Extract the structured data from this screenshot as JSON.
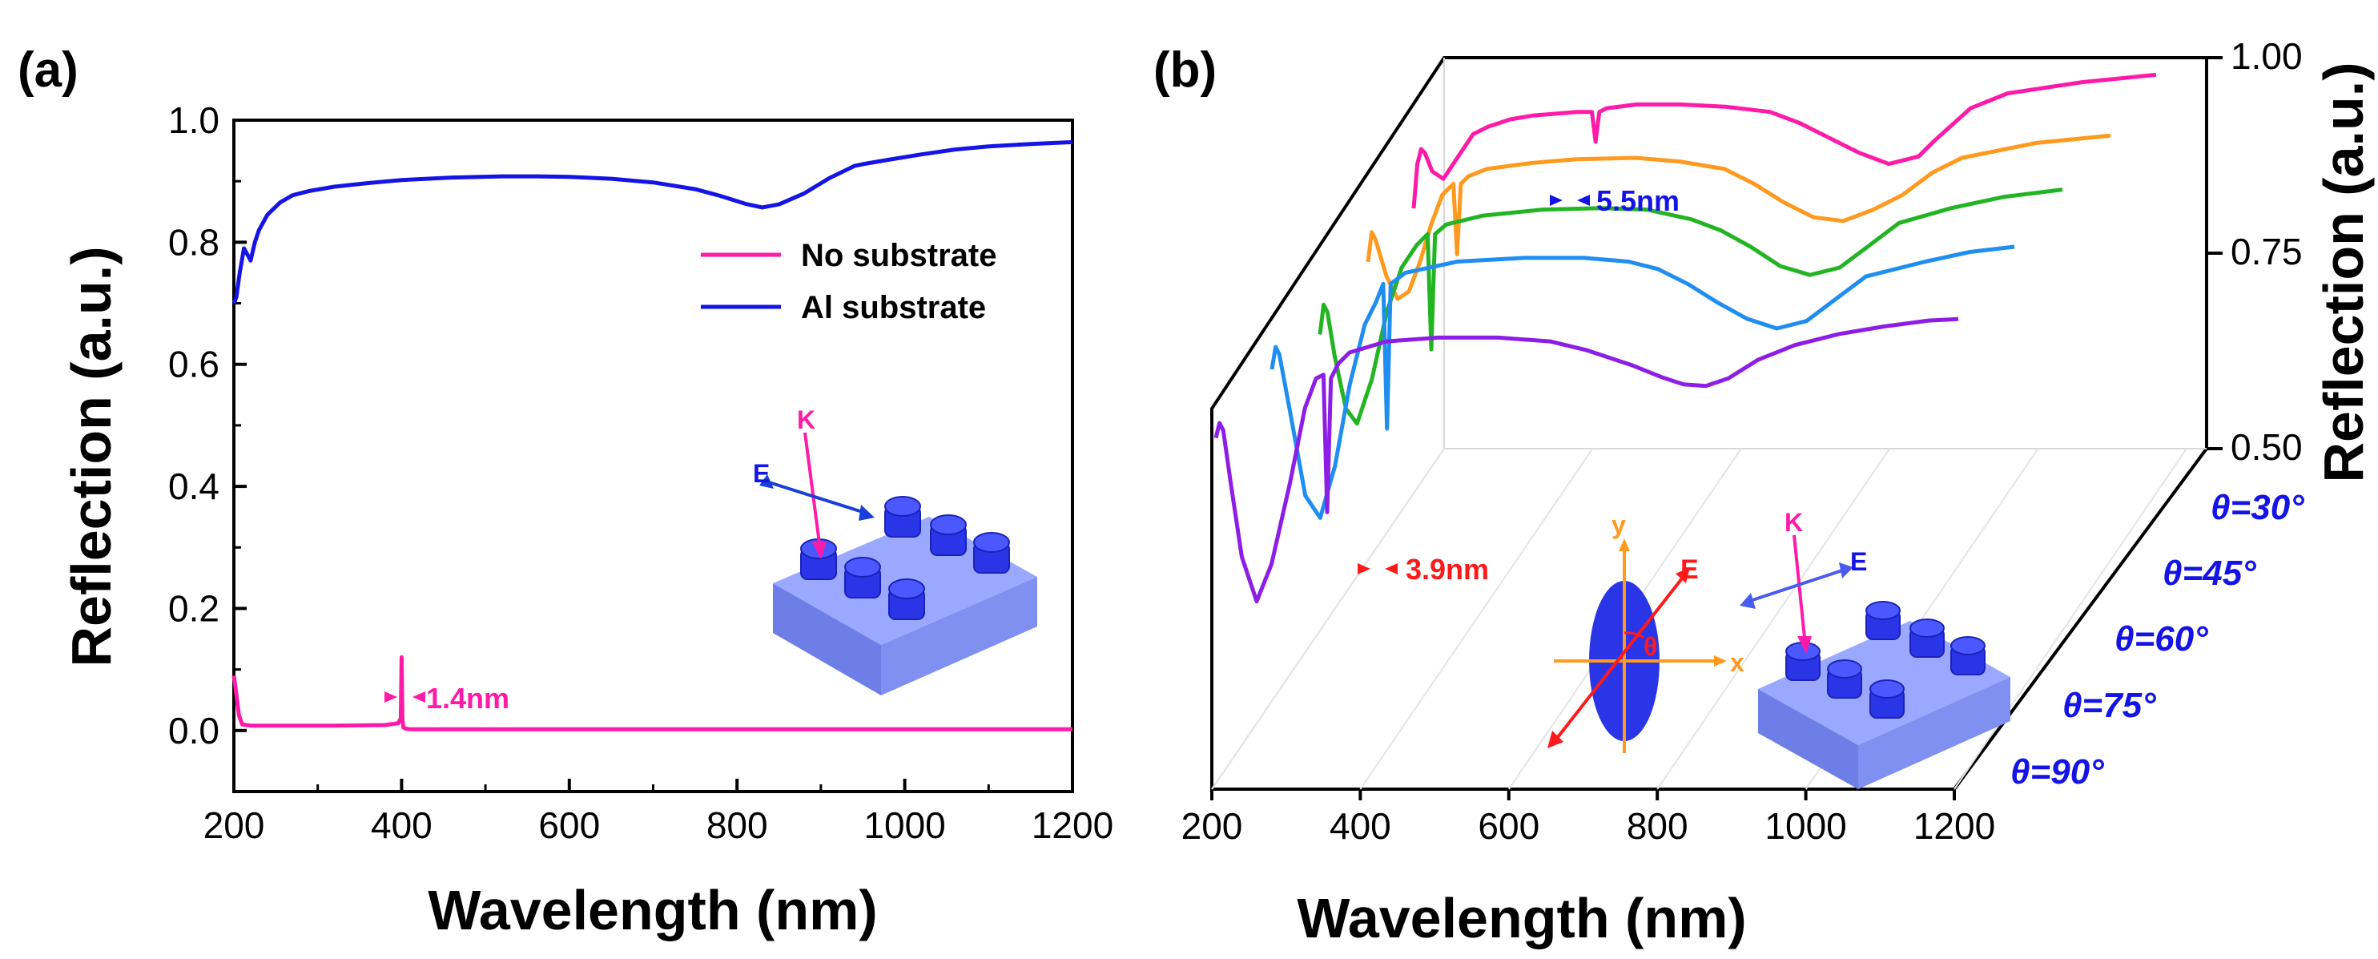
{
  "colors": {
    "magenta": "#ff1aa8",
    "blue": "#1414e6",
    "orange": "#ff9a1f",
    "green": "#22b422",
    "lightblue": "#1f8ef0",
    "purple": "#8c1ee6",
    "red": "#ff1a1a",
    "axis": "#000000"
  },
  "panel_a": {
    "label": "(a)",
    "legend": [
      "No substrate",
      "Al  substrate"
    ],
    "annotation": "1.4nm",
    "inset": {
      "k_label": "K",
      "e_label": "E"
    }
  },
  "panel_b": {
    "label": "(b)",
    "annotation_top": "5.5nm",
    "annotation_bottom": "3.9nm",
    "angles": [
      "θ=30°",
      "θ=45°",
      "θ=60°",
      "θ=75°",
      "θ=90°"
    ],
    "inset_axes": {
      "x": "x",
      "y": "y",
      "e": "E",
      "theta": "θ"
    },
    "inset_k": "K",
    "inset_e": "E"
  },
  "chart_data": [
    {
      "type": "line",
      "title": "",
      "xlabel": "Wavelength (nm)",
      "ylabel": "Reflection (a.u.)",
      "xlim": [
        200,
        1200
      ],
      "ylim": [
        -0.1,
        1.0
      ],
      "xticks": [
        "200",
        "400",
        "600",
        "800",
        "1000",
        "1200"
      ],
      "yticks": [
        "0.0",
        "0.2",
        "0.4",
        "0.6",
        "0.8",
        "1.0"
      ],
      "series": [
        {
          "name": "No substrate",
          "x": [
            200,
            203,
            206,
            210,
            220,
            260,
            320,
            380,
            396,
            399,
            400,
            401,
            402,
            405,
            410,
            500,
            600,
            700,
            800,
            900,
            1000,
            1100,
            1200
          ],
          "y": [
            0.09,
            0.06,
            0.025,
            0.01,
            0.008,
            0.008,
            0.008,
            0.009,
            0.012,
            0.02,
            0.12,
            0.02,
            0.005,
            0.003,
            0.002,
            0.002,
            0.002,
            0.002,
            0.002,
            0.002,
            0.002,
            0.002,
            0.002
          ]
        },
        {
          "name": "Al  substrate",
          "x": [
            200,
            203,
            207,
            212,
            216,
            220,
            225,
            230,
            240,
            255,
            270,
            290,
            320,
            360,
            400,
            460,
            520,
            560,
            600,
            650,
            700,
            750,
            780,
            810,
            830,
            850,
            880,
            910,
            940,
            950,
            980,
            1020,
            1060,
            1100,
            1150,
            1200
          ],
          "y": [
            0.7,
            0.71,
            0.75,
            0.79,
            0.78,
            0.77,
            0.8,
            0.82,
            0.845,
            0.865,
            0.877,
            0.884,
            0.891,
            0.897,
            0.902,
            0.906,
            0.908,
            0.908,
            0.907,
            0.904,
            0.898,
            0.887,
            0.876,
            0.863,
            0.857,
            0.862,
            0.88,
            0.905,
            0.925,
            0.928,
            0.935,
            0.944,
            0.952,
            0.957,
            0.961,
            0.964
          ]
        }
      ]
    },
    {
      "type": "line",
      "title": "",
      "xlabel": "Wavelength (nm)",
      "ylabel": "Reflection (a.u.)",
      "xlim": [
        200,
        1200
      ],
      "zlim": [
        0.5,
        1.0
      ],
      "xticks": [
        "200",
        "400",
        "600",
        "800",
        "1000",
        "1200"
      ],
      "zticks": [
        "0.50",
        "0.75",
        "1.00"
      ],
      "categories": [
        "θ=30°",
        "θ=45°",
        "θ=60°",
        "θ=75°",
        "θ=90°"
      ],
      "series": [
        {
          "name": "θ=30°",
          "x": [
            200,
            205,
            210,
            215,
            225,
            240,
            260,
            280,
            300,
            330,
            360,
            420,
            440,
            445,
            450,
            460,
            500,
            560,
            620,
            680,
            720,
            760,
            800,
            840,
            880,
            900,
            950,
            1000,
            1100,
            1200
          ],
          "y": [
            0.8,
            0.86,
            0.88,
            0.875,
            0.85,
            0.84,
            0.87,
            0.9,
            0.91,
            0.92,
            0.925,
            0.93,
            0.93,
            0.89,
            0.93,
            0.935,
            0.94,
            0.94,
            0.937,
            0.93,
            0.915,
            0.895,
            0.875,
            0.86,
            0.87,
            0.89,
            0.935,
            0.955,
            0.97,
            0.98
          ]
        },
        {
          "name": "θ=45°",
          "x": [
            200,
            205,
            210,
            225,
            240,
            255,
            270,
            285,
            300,
            315,
            320,
            325,
            335,
            360,
            420,
            480,
            560,
            620,
            680,
            720,
            760,
            800,
            840,
            880,
            920,
            960,
            1000,
            1100,
            1200
          ],
          "y": [
            0.78,
            0.82,
            0.81,
            0.76,
            0.73,
            0.74,
            0.78,
            0.83,
            0.87,
            0.885,
            0.79,
            0.885,
            0.895,
            0.905,
            0.913,
            0.918,
            0.92,
            0.915,
            0.905,
            0.885,
            0.86,
            0.84,
            0.835,
            0.85,
            0.87,
            0.9,
            0.92,
            0.94,
            0.95
          ]
        },
        {
          "name": "θ=60°",
          "x": [
            200,
            205,
            210,
            220,
            235,
            250,
            270,
            290,
            310,
            330,
            345,
            350,
            355,
            370,
            420,
            500,
            580,
            640,
            700,
            740,
            780,
            820,
            860,
            900,
            940,
            980,
            1050,
            1120,
            1200
          ],
          "y": [
            0.72,
            0.76,
            0.75,
            0.69,
            0.62,
            0.6,
            0.66,
            0.75,
            0.81,
            0.84,
            0.855,
            0.7,
            0.855,
            0.868,
            0.88,
            0.888,
            0.89,
            0.888,
            0.875,
            0.86,
            0.838,
            0.812,
            0.8,
            0.81,
            0.84,
            0.87,
            0.89,
            0.905,
            0.915
          ]
        },
        {
          "name": "θ=75°",
          "x": [
            200,
            205,
            210,
            225,
            245,
            265,
            285,
            305,
            325,
            340,
            350,
            355,
            360,
            380,
            450,
            540,
            620,
            680,
            720,
            760,
            800,
            840,
            880,
            920,
            960,
            1000,
            1080,
            1140,
            1200
          ],
          "y": [
            0.7,
            0.73,
            0.72,
            0.64,
            0.53,
            0.5,
            0.57,
            0.68,
            0.76,
            0.79,
            0.815,
            0.62,
            0.815,
            0.83,
            0.845,
            0.85,
            0.85,
            0.845,
            0.835,
            0.815,
            0.79,
            0.768,
            0.755,
            0.765,
            0.795,
            0.825,
            0.845,
            0.858,
            0.865
          ]
        },
        {
          "name": "θ=90°",
          "x": [
            200,
            205,
            210,
            220,
            235,
            255,
            275,
            300,
            320,
            335,
            345,
            350,
            355,
            365,
            380,
            430,
            500,
            580,
            650,
            700,
            760,
            800,
            830,
            860,
            890,
            930,
            980,
            1040,
            1100,
            1160,
            1200
          ],
          "y": [
            0.64,
            0.66,
            0.65,
            0.58,
            0.48,
            0.42,
            0.47,
            0.58,
            0.68,
            0.72,
            0.725,
            0.54,
            0.72,
            0.74,
            0.755,
            0.77,
            0.775,
            0.775,
            0.77,
            0.758,
            0.738,
            0.722,
            0.712,
            0.71,
            0.72,
            0.745,
            0.765,
            0.78,
            0.79,
            0.798,
            0.8
          ]
        }
      ]
    }
  ]
}
